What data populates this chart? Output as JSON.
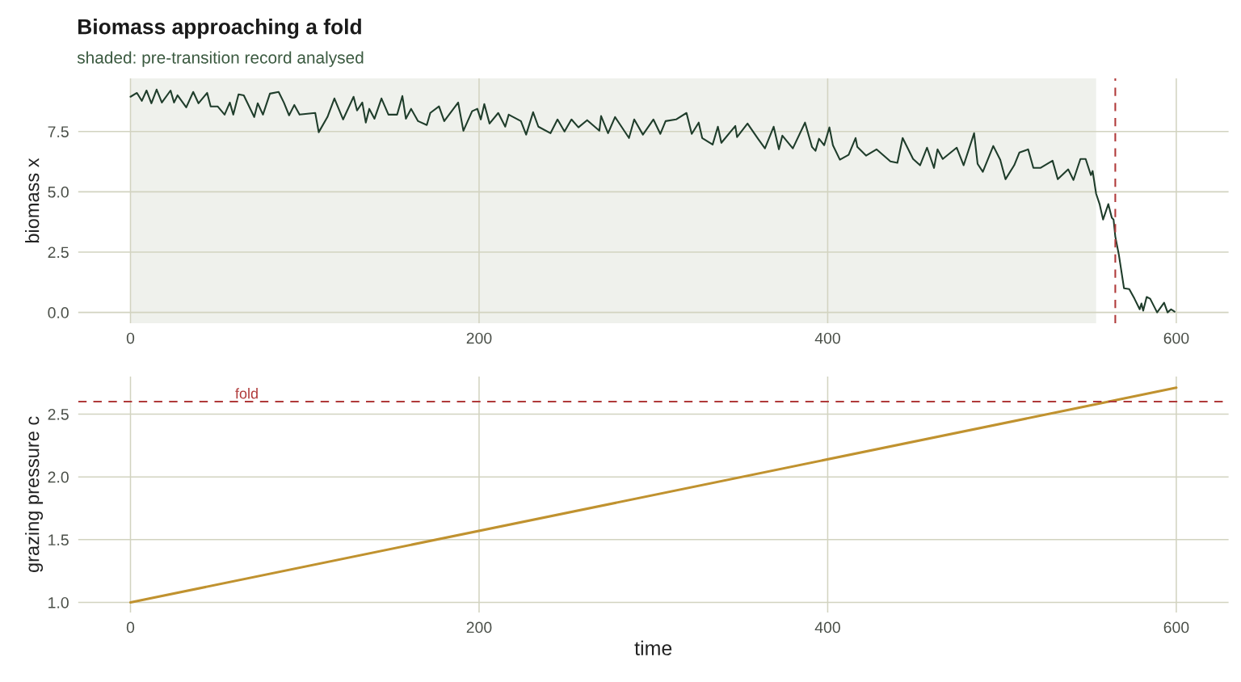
{
  "chart_data": [
    {
      "type": "line",
      "title": "Biomass approaching a fold",
      "subtitle": "shaded: pre-transition record analysed",
      "ylabel": "biomass x",
      "x": [
        0,
        3.7,
        6.5,
        9.2,
        12,
        15,
        18,
        23,
        25,
        27,
        32,
        36,
        39,
        44,
        46,
        50,
        54,
        57,
        59,
        62,
        65,
        71,
        73,
        76,
        80,
        85,
        88,
        91,
        94,
        97,
        106,
        108,
        113,
        117,
        122,
        128,
        130,
        133,
        135,
        137,
        140,
        144,
        148,
        153,
        156,
        158,
        161,
        165,
        170,
        172,
        177,
        180,
        188,
        191,
        196,
        199,
        201,
        203,
        206,
        211,
        215,
        217,
        224,
        227,
        231,
        234,
        241,
        245,
        249,
        253,
        257,
        262,
        269,
        270,
        274,
        278,
        286,
        289,
        294,
        300,
        304,
        307,
        313,
        319,
        322,
        326,
        328,
        334,
        337,
        339,
        347,
        348,
        354,
        360,
        364,
        369,
        372,
        374,
        380,
        387,
        391,
        393,
        395,
        398,
        401,
        403,
        407,
        412,
        416,
        417,
        422,
        428,
        436,
        440,
        443,
        449,
        453,
        457,
        461,
        463,
        466,
        474,
        478,
        484,
        486,
        489,
        495,
        499,
        502,
        507,
        510,
        515,
        518,
        522,
        529,
        532,
        538,
        541,
        545,
        548,
        551,
        552,
        554,
        556,
        558,
        561,
        563,
        564,
        565,
        567,
        570,
        573,
        576,
        579,
        580,
        581,
        583,
        585,
        589,
        593,
        595,
        597,
        599
      ],
      "series": [
        {
          "color": "#1f3d2b",
          "values": [
            8.94,
            9.1,
            8.77,
            9.2,
            8.67,
            9.24,
            8.7,
            9.2,
            8.7,
            9.0,
            8.5,
            9.14,
            8.67,
            9.1,
            8.54,
            8.54,
            8.2,
            8.7,
            8.2,
            9.04,
            9.0,
            8.1,
            8.67,
            8.2,
            9.07,
            9.14,
            8.7,
            8.17,
            8.6,
            8.2,
            8.27,
            7.47,
            8.1,
            8.87,
            8.0,
            8.94,
            8.37,
            8.7,
            7.87,
            8.44,
            8.03,
            8.87,
            8.2,
            8.2,
            8.97,
            8.03,
            8.44,
            7.93,
            7.77,
            8.27,
            8.54,
            7.93,
            8.7,
            7.53,
            8.34,
            8.44,
            8.0,
            8.64,
            7.83,
            8.27,
            7.7,
            8.2,
            7.93,
            7.37,
            8.3,
            7.7,
            7.43,
            8.0,
            7.5,
            8.0,
            7.67,
            7.97,
            7.53,
            8.14,
            7.43,
            8.1,
            7.23,
            8.0,
            7.37,
            8.0,
            7.4,
            7.93,
            8.0,
            8.27,
            7.4,
            7.87,
            7.23,
            6.96,
            7.7,
            7.03,
            7.73,
            7.27,
            7.83,
            7.2,
            6.8,
            7.7,
            6.76,
            7.33,
            6.8,
            7.87,
            6.86,
            6.7,
            7.2,
            6.93,
            7.67,
            6.93,
            6.33,
            6.53,
            7.23,
            6.86,
            6.5,
            6.76,
            6.26,
            6.2,
            7.23,
            6.36,
            6.1,
            6.83,
            5.99,
            6.76,
            6.36,
            6.83,
            6.1,
            7.43,
            6.16,
            5.83,
            6.9,
            6.33,
            5.52,
            6.1,
            6.63,
            6.76,
            5.99,
            5.99,
            6.29,
            5.52,
            5.93,
            5.49,
            6.36,
            6.36,
            5.69,
            5.86,
            4.92,
            4.49,
            3.85,
            4.49,
            3.92,
            3.85,
            3.15,
            2.41,
            1.0,
            0.97,
            0.57,
            0.13,
            0.37,
            0.07,
            0.64,
            0.57,
            0.0,
            0.4,
            0.0,
            0.13,
            0.03
          ]
        }
      ],
      "xlim": [
        -30,
        630
      ],
      "ylim": [
        -0.45,
        9.7
      ],
      "xticks": [
        0,
        200,
        400,
        600
      ],
      "yticks": [
        {
          "value": 0,
          "label": "0.0"
        },
        2.5,
        {
          "value": 5,
          "label": "5.0"
        },
        7.5
      ],
      "bands": [
        {
          "axis": "x",
          "from": 0,
          "to": 554,
          "color": "#eff1ec"
        }
      ],
      "ref_lines": [
        {
          "axis": "x",
          "value": 565,
          "color": "#b03a3a",
          "line_style": "dashed"
        }
      ],
      "grid": true
    },
    {
      "type": "line",
      "xlabel": "time",
      "ylabel": "grazing pressure c",
      "x": [
        0,
        600
      ],
      "series": [
        {
          "color": "#c0922f",
          "values": [
            1.0,
            2.71
          ]
        }
      ],
      "xlim": [
        -30,
        630
      ],
      "ylim": [
        0.92,
        2.8
      ],
      "xticks": [
        0,
        200,
        400,
        600
      ],
      "yticks": [
        {
          "value": 1,
          "label": "1.0"
        },
        1.5,
        {
          "value": 2,
          "label": "2.0"
        },
        2.5
      ],
      "ref_lines": [
        {
          "axis": "y",
          "value": 2.6,
          "label": "fold",
          "color": "#b03a3a",
          "line_style": "dashed"
        }
      ],
      "grid": true
    }
  ]
}
